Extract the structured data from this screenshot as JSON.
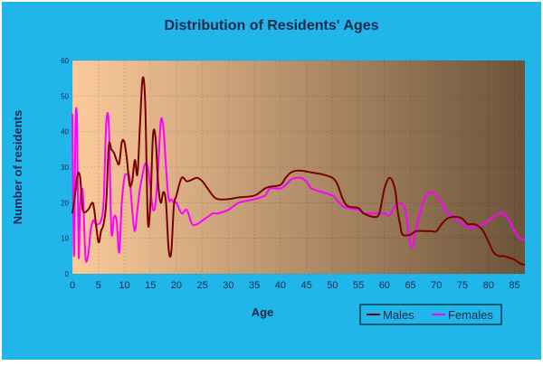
{
  "colors": {
    "frame_background": "#21b6ea",
    "plot_gradient_start": "#fccb9a",
    "plot_gradient_end": "#6b533a",
    "title_text": "#1a2a4a",
    "axis_text": "#1a2a4a",
    "males": "#7a0000",
    "females": "#ff00ff"
  },
  "chart_data": {
    "type": "line",
    "title": "Distribution of Residents' Ages",
    "xlabel": "Age",
    "ylabel": "Number of residents",
    "xlim": [
      0,
      87
    ],
    "ylim": [
      0,
      60
    ],
    "x_ticks": [
      0,
      5,
      10,
      15,
      20,
      25,
      30,
      35,
      40,
      45,
      50,
      55,
      60,
      65,
      70,
      75,
      80,
      85
    ],
    "y_ticks": [
      0,
      10,
      20,
      30,
      40,
      50,
      60
    ],
    "legend_position": "bottom-right",
    "grid": true,
    "series": [
      {
        "name": "Males",
        "color": "#7a0000",
        "points": [
          [
            0,
            17
          ],
          [
            0.5,
            22
          ],
          [
            1,
            28
          ],
          [
            1.5,
            27
          ],
          [
            2,
            18
          ],
          [
            3,
            18
          ],
          [
            3.8,
            20
          ],
          [
            4.2,
            18
          ],
          [
            5,
            9
          ],
          [
            5.5,
            12
          ],
          [
            6,
            14
          ],
          [
            6.5,
            20
          ],
          [
            7,
            36
          ],
          [
            7.5,
            35
          ],
          [
            8,
            34
          ],
          [
            8.5,
            32
          ],
          [
            9,
            31
          ],
          [
            9.5,
            37
          ],
          [
            10,
            37
          ],
          [
            10.5,
            32
          ],
          [
            11,
            25
          ],
          [
            11.5,
            26
          ],
          [
            12,
            32
          ],
          [
            12.5,
            28
          ],
          [
            13,
            42
          ],
          [
            13.5,
            55
          ],
          [
            14,
            48
          ],
          [
            14.5,
            15
          ],
          [
            15,
            20
          ],
          [
            15.5,
            39
          ],
          [
            16,
            38
          ],
          [
            16.5,
            25
          ],
          [
            17,
            20
          ],
          [
            17.5,
            23
          ],
          [
            18,
            20
          ],
          [
            18.5,
            7
          ],
          [
            19,
            6
          ],
          [
            19.5,
            19
          ],
          [
            20,
            22
          ],
          [
            21,
            27
          ],
          [
            22,
            26
          ],
          [
            23,
            26.5
          ],
          [
            24,
            27
          ],
          [
            25,
            26
          ],
          [
            26,
            24
          ],
          [
            27,
            22
          ],
          [
            28,
            21
          ],
          [
            30,
            21
          ],
          [
            32,
            21.5
          ],
          [
            35,
            22
          ],
          [
            37,
            24
          ],
          [
            38,
            24.5
          ],
          [
            40,
            25
          ],
          [
            41,
            27
          ],
          [
            42,
            28.5
          ],
          [
            43,
            29
          ],
          [
            44,
            29
          ],
          [
            46,
            28.5
          ],
          [
            48,
            28
          ],
          [
            50,
            27
          ],
          [
            51,
            25
          ],
          [
            52,
            21
          ],
          [
            53,
            19
          ],
          [
            55,
            18.5
          ],
          [
            56,
            17
          ],
          [
            58,
            16
          ],
          [
            59,
            17
          ],
          [
            60,
            24
          ],
          [
            61,
            27
          ],
          [
            62,
            24
          ],
          [
            62.5,
            18
          ],
          [
            63,
            14
          ],
          [
            63.5,
            11
          ],
          [
            65,
            11
          ],
          [
            66,
            12
          ],
          [
            68,
            12
          ],
          [
            69,
            12
          ],
          [
            70,
            12
          ],
          [
            71,
            14
          ],
          [
            72,
            15.5
          ],
          [
            73,
            16
          ],
          [
            74,
            16
          ],
          [
            75,
            15.5
          ],
          [
            76,
            14
          ],
          [
            77,
            14
          ],
          [
            78,
            13.5
          ],
          [
            79,
            12
          ],
          [
            80,
            9
          ],
          [
            81,
            6
          ],
          [
            82,
            5
          ],
          [
            83,
            5
          ],
          [
            84,
            4.5
          ],
          [
            85,
            4
          ],
          [
            86,
            3
          ],
          [
            87,
            2.5
          ]
        ]
      },
      {
        "name": "Females",
        "color": "#ff00ff",
        "points": [
          [
            0,
            45
          ],
          [
            0.3,
            5
          ],
          [
            0.6,
            42
          ],
          [
            0.9,
            42
          ],
          [
            1.2,
            5
          ],
          [
            1.5,
            20
          ],
          [
            2,
            23
          ],
          [
            2.5,
            5
          ],
          [
            3,
            5
          ],
          [
            3.5,
            12
          ],
          [
            4,
            15
          ],
          [
            4.5,
            14
          ],
          [
            5,
            14
          ],
          [
            5.5,
            15
          ],
          [
            6,
            20
          ],
          [
            6.5,
            42
          ],
          [
            7,
            42
          ],
          [
            7.5,
            12
          ],
          [
            8,
            16
          ],
          [
            8.5,
            15
          ],
          [
            9,
            6
          ],
          [
            9.5,
            20
          ],
          [
            10,
            27
          ],
          [
            10.5,
            28
          ],
          [
            11,
            27
          ],
          [
            11.5,
            18
          ],
          [
            12,
            12
          ],
          [
            12.5,
            18
          ],
          [
            13,
            24
          ],
          [
            13.5,
            28
          ],
          [
            14,
            31
          ],
          [
            14.5,
            30
          ],
          [
            15,
            24
          ],
          [
            15.5,
            18
          ],
          [
            16,
            20
          ],
          [
            16.5,
            30
          ],
          [
            17,
            43
          ],
          [
            17.5,
            41
          ],
          [
            18,
            30
          ],
          [
            18.5,
            21
          ],
          [
            19,
            21
          ],
          [
            19.5,
            20
          ],
          [
            20,
            20
          ],
          [
            21,
            17
          ],
          [
            22,
            18
          ],
          [
            23,
            14
          ],
          [
            24,
            14
          ],
          [
            25,
            15
          ],
          [
            26,
            16
          ],
          [
            27,
            17
          ],
          [
            28,
            17
          ],
          [
            30,
            18
          ],
          [
            32,
            20
          ],
          [
            35,
            21
          ],
          [
            37,
            22
          ],
          [
            38,
            24
          ],
          [
            40,
            24
          ],
          [
            41,
            25
          ],
          [
            42,
            26.5
          ],
          [
            43,
            27
          ],
          [
            44,
            27
          ],
          [
            45,
            26
          ],
          [
            46,
            24
          ],
          [
            48,
            23
          ],
          [
            50,
            22
          ],
          [
            51,
            20.5
          ],
          [
            52,
            19
          ],
          [
            53,
            18.5
          ],
          [
            55,
            18
          ],
          [
            56,
            17
          ],
          [
            58,
            17
          ],
          [
            59,
            17
          ],
          [
            60,
            17
          ],
          [
            61,
            16.5
          ],
          [
            62,
            19
          ],
          [
            63,
            20
          ],
          [
            64,
            18
          ],
          [
            64.5,
            13
          ],
          [
            65,
            8
          ],
          [
            65.5,
            8
          ],
          [
            66,
            12
          ],
          [
            67,
            18
          ],
          [
            68,
            22
          ],
          [
            69,
            23
          ],
          [
            70,
            22
          ],
          [
            71,
            20
          ],
          [
            72,
            17
          ],
          [
            73,
            16.5
          ],
          [
            74,
            15
          ],
          [
            75,
            14
          ],
          [
            76,
            13
          ],
          [
            77,
            13
          ],
          [
            78,
            13.5
          ],
          [
            79,
            14
          ],
          [
            80,
            15
          ],
          [
            81,
            16
          ],
          [
            82,
            17
          ],
          [
            83,
            17
          ],
          [
            84,
            15
          ],
          [
            85,
            12
          ],
          [
            86,
            10
          ],
          [
            87,
            9.5
          ]
        ]
      }
    ]
  }
}
